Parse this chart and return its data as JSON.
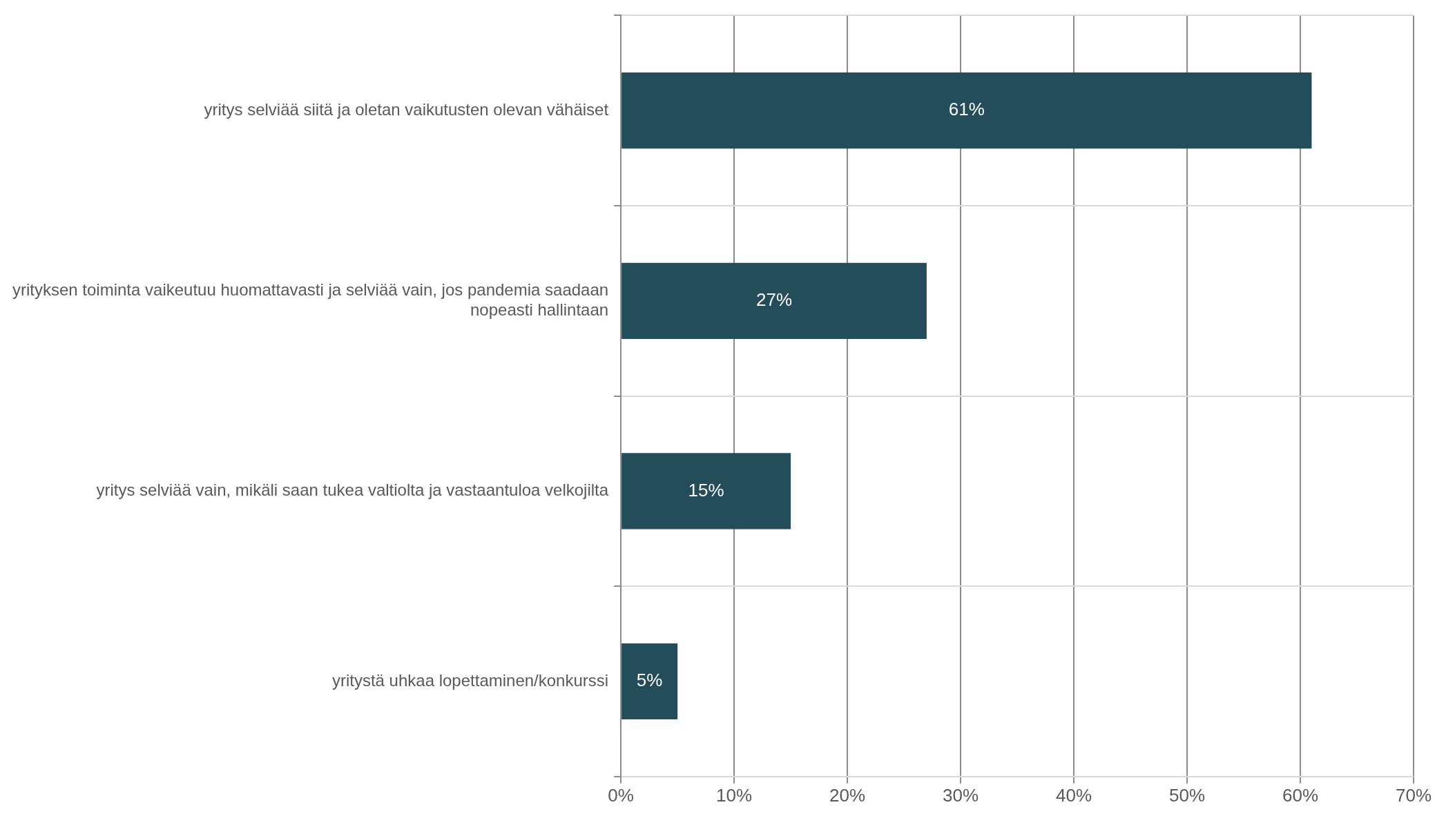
{
  "chart_data": {
    "type": "bar",
    "orientation": "horizontal",
    "categories": [
      "yritys selviää siitä ja oletan vaikutusten olevan vähäiset",
      "yrityksen toiminta vaikeutuu huomattavasti ja selviää vain, jos pandemia saadaan nopeasti hallintaan",
      "yritys selviää vain, mikäli saan tukea valtiolta ja vastaantuloa velkojilta",
      "yritystä uhkaa lopettaminen/konkurssi"
    ],
    "values": [
      61,
      27,
      15,
      5
    ],
    "value_labels": [
      "61%",
      "27%",
      "15%",
      "5%"
    ],
    "color": "#234d5a",
    "xlim": [
      0,
      70
    ],
    "xticks": [
      {
        "value": 0,
        "label": "0%"
      },
      {
        "value": 10,
        "label": "10%"
      },
      {
        "value": 20,
        "label": "20%"
      },
      {
        "value": 30,
        "label": "30%"
      },
      {
        "value": 40,
        "label": "40%"
      },
      {
        "value": 50,
        "label": "50%"
      },
      {
        "value": 60,
        "label": "60%"
      },
      {
        "value": 70,
        "label": "70%"
      }
    ],
    "grid": true,
    "legend": false
  }
}
